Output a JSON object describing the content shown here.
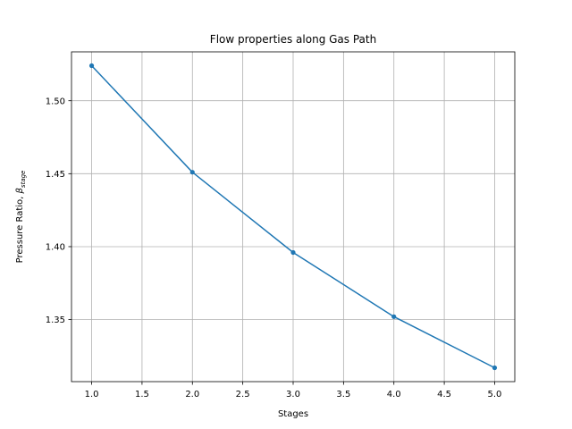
{
  "chart_data": {
    "type": "line",
    "title": "Flow properties along Gas Path",
    "xlabel": "Stages",
    "ylabel_main": "Pressure Ratio, ",
    "ylabel_symbol": "β",
    "ylabel_subscript": "stage",
    "xlim": [
      0.8,
      5.2
    ],
    "ylim": [
      1.3075,
      1.5335
    ],
    "xticks": [
      1.0,
      1.5,
      2.0,
      2.5,
      3.0,
      3.5,
      4.0,
      4.5,
      5.0
    ],
    "xtick_labels": [
      "1.0",
      "1.5",
      "2.0",
      "2.5",
      "3.0",
      "3.5",
      "4.0",
      "4.5",
      "5.0"
    ],
    "yticks": [
      1.35,
      1.4,
      1.45,
      1.5
    ],
    "ytick_labels": [
      "1.35",
      "1.40",
      "1.45",
      "1.50"
    ],
    "grid": true,
    "series": [
      {
        "name": "Pressure Ratio",
        "color": "#1f77b4",
        "marker": "dot",
        "x": [
          1,
          2,
          3,
          4,
          5
        ],
        "y": [
          1.524,
          1.451,
          1.396,
          1.352,
          1.317
        ]
      }
    ]
  }
}
